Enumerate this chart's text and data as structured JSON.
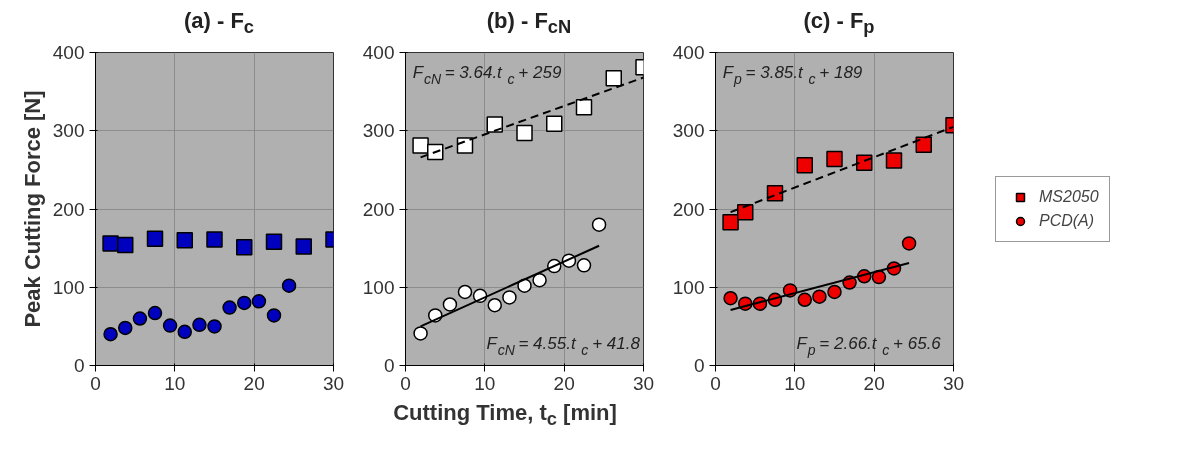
{
  "chart_data": [
    {
      "type": "scatter",
      "title": "(a) - F$_{c}$",
      "ylabel": "Peak Cutting Force [N]",
      "xlim": [
        0,
        30
      ],
      "ylim": [
        0,
        400
      ],
      "xticks": [
        0,
        10,
        20,
        30
      ],
      "yticks": [
        0,
        100,
        200,
        300,
        400
      ],
      "grid": true,
      "series": [
        {
          "color": "#0000bf",
          "marker": "square",
          "x": [
            1.9,
            3.75,
            7.5,
            11.25,
            15,
            18.75,
            22.5,
            26.25,
            30
          ],
          "values": [
            156,
            154,
            162,
            160,
            161,
            151,
            158,
            152,
            161
          ]
        },
        {
          "color": "#0000bf",
          "marker": "circle",
          "x": [
            1.9,
            3.75,
            5.6,
            7.5,
            9.4,
            11.25,
            13.1,
            15,
            16.9,
            18.75,
            20.6,
            22.5,
            24.4
          ],
          "values": [
            40,
            48,
            60,
            67,
            51,
            43,
            52,
            50,
            74,
            80,
            82,
            64,
            102
          ]
        }
      ]
    },
    {
      "type": "scatter",
      "title": "(b) - F$_{cN}$",
      "xlabel": "Cutting Time, t$_{c}$ [min]",
      "xlim": [
        0,
        30
      ],
      "ylim": [
        0,
        400
      ],
      "xticks": [
        0,
        10,
        20,
        30
      ],
      "yticks": [
        0,
        100,
        200,
        300,
        400
      ],
      "grid": true,
      "annotations": [
        "F$_{cN}$ = 3.64.t$_{c}$ + 259",
        "F$_{cN}$ = 4.55.t$_{c}$ + 41.8"
      ],
      "series": [
        {
          "color": "#ffffff",
          "marker": "square",
          "x": [
            1.9,
            3.75,
            7.5,
            11.25,
            15,
            18.75,
            22.5,
            26.25,
            30
          ],
          "values": [
            281,
            273,
            281,
            308,
            297,
            309,
            330,
            367,
            381
          ]
        },
        {
          "color": "#ffffff",
          "marker": "circle",
          "x": [
            1.9,
            3.75,
            5.6,
            7.5,
            9.4,
            11.25,
            13.1,
            15,
            16.9,
            18.75,
            20.6,
            22.5,
            24.4
          ],
          "values": [
            41,
            64,
            78,
            94,
            89,
            77,
            87,
            102,
            109,
            127,
            134,
            128,
            180
          ]
        },
        {
          "type": "line",
          "color": "#000000",
          "line_style": "dashed",
          "x": [
            1.9,
            30
          ],
          "values": [
            266,
            368
          ]
        },
        {
          "type": "line",
          "color": "#000000",
          "line_style": "solid",
          "x": [
            1.9,
            24.4
          ],
          "values": [
            50,
            153
          ]
        }
      ]
    },
    {
      "type": "scatter",
      "title": "(c) - F$_{p}$",
      "xlim": [
        0,
        30
      ],
      "ylim": [
        0,
        400
      ],
      "xticks": [
        0,
        10,
        20,
        30
      ],
      "yticks": [
        0,
        100,
        200,
        300,
        400
      ],
      "grid": true,
      "legend": "right",
      "annotations": [
        "F$_{p}$ = 3.85.t$_{c}$ + 189",
        "F$_{p}$ = 2.66.t$_{c}$ + 65.6"
      ],
      "series": [
        {
          "name": "MS2050",
          "color": "#ee0000",
          "marker": "square",
          "x": [
            1.9,
            3.75,
            7.5,
            11.25,
            15,
            18.75,
            22.5,
            26.25,
            30
          ],
          "values": [
            183,
            196,
            220,
            256,
            264,
            259,
            262,
            282,
            307
          ]
        },
        {
          "name": "PCD(A)",
          "color": "#ee0000",
          "marker": "circle",
          "x": [
            1.9,
            3.75,
            5.6,
            7.5,
            9.4,
            11.25,
            13.1,
            15,
            16.9,
            18.75,
            20.6,
            22.5,
            24.4
          ],
          "values": [
            86,
            79,
            79,
            84,
            96,
            84,
            88,
            94,
            106,
            114,
            113,
            124,
            156
          ]
        },
        {
          "type": "line",
          "color": "#000000",
          "line_style": "dashed",
          "x": [
            1.9,
            30
          ],
          "values": [
            196,
            305
          ]
        },
        {
          "type": "line",
          "color": "#000000",
          "line_style": "solid",
          "x": [
            1.9,
            24.4
          ],
          "values": [
            71,
            131
          ]
        }
      ]
    }
  ]
}
